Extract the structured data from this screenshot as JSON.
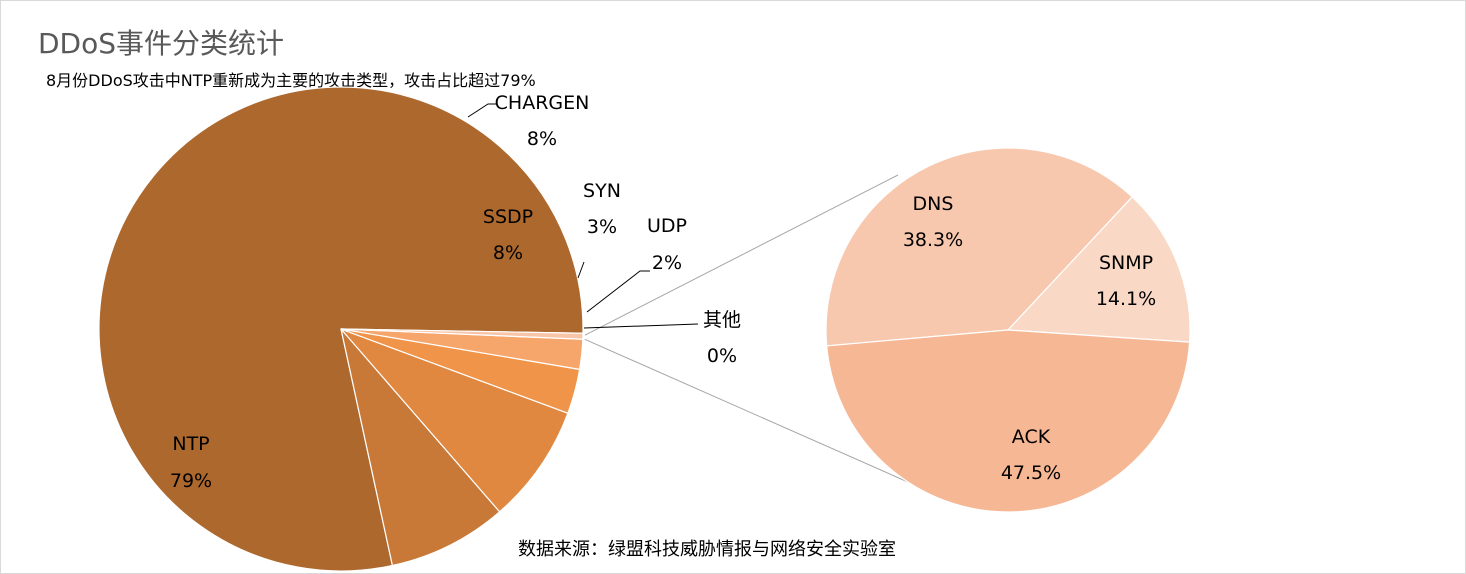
{
  "title": "DDoS事件分类统计",
  "subtitle": "8月份DDoS攻击中NTP重新成为主要的攻击类型，攻击占比超过79%",
  "source": "数据来源：绿盟科技威胁情报与网络安全实验室",
  "chart_data": [
    {
      "type": "pie",
      "legend": "none",
      "slices": [
        {
          "name": "NTP",
          "value": 79,
          "label": "79%",
          "color": "#ad682e"
        },
        {
          "name": "CHARGEN",
          "value": 8,
          "label": "8%",
          "color": "#c87837"
        },
        {
          "name": "SSDP",
          "value": 8,
          "label": "8%",
          "color": "#e08740"
        },
        {
          "name": "SYN",
          "value": 3,
          "label": "3%",
          "color": "#ef9448"
        },
        {
          "name": "UDP",
          "value": 2,
          "label": "2%",
          "color": "#f6a56b"
        },
        {
          "name": "其他",
          "value": 0.4,
          "label": "0%",
          "color": "#f9c5a9"
        }
      ]
    },
    {
      "type": "pie",
      "legend": "none",
      "slices": [
        {
          "name": "DNS",
          "value": 38.3,
          "label": "38.3%",
          "color": "#f8c8ae"
        },
        {
          "name": "SNMP",
          "value": 14.1,
          "label": "14.1%",
          "color": "#fad8c6"
        },
        {
          "name": "ACK",
          "value": 47.5,
          "label": "47.5%",
          "color": "#f6b794"
        }
      ]
    }
  ]
}
